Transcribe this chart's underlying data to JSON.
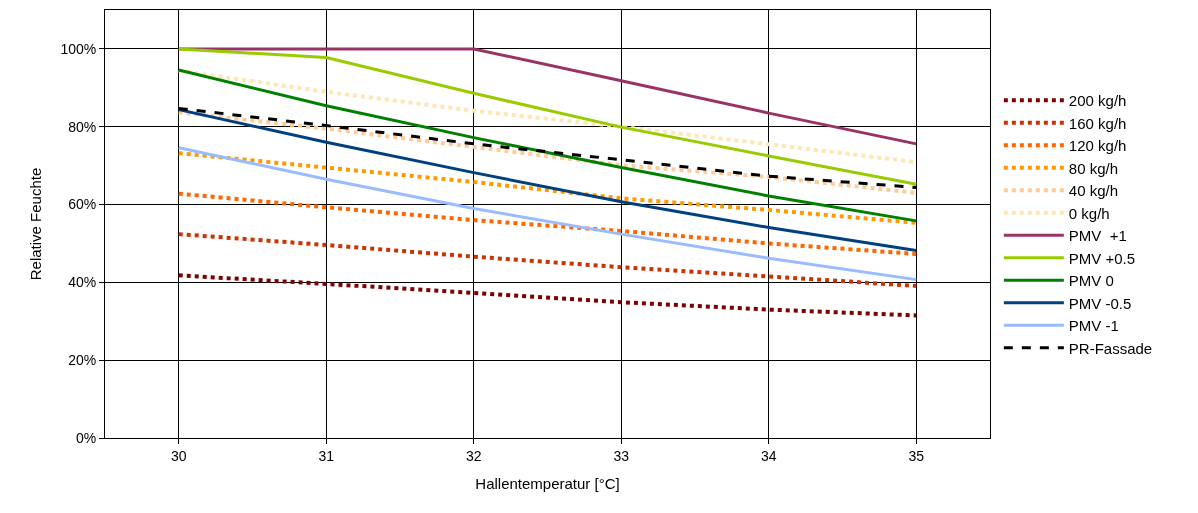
{
  "chart_data": {
    "type": "line",
    "xlabel": "Hallentemperatur [°C]",
    "ylabel": "Relative Feuchte",
    "x": [
      30,
      31,
      32,
      33,
      34,
      35
    ],
    "xlim": [
      29.5,
      35.5
    ],
    "xticks": [
      30,
      31,
      32,
      33,
      34,
      35
    ],
    "ylim": [
      0,
      110
    ],
    "yticks": [
      {
        "value": 0,
        "label": "0%"
      },
      {
        "value": 20,
        "label": "20%"
      },
      {
        "value": 40,
        "label": "40%"
      },
      {
        "value": 60,
        "label": "60%"
      },
      {
        "value": 80,
        "label": "80%"
      },
      {
        "value": 100,
        "label": "100%"
      }
    ],
    "grid": true,
    "legend": "right",
    "marker": "none",
    "series": [
      {
        "name": "200 kg/h",
        "color": "#800000",
        "line_style": "dotted",
        "values": [
          41.8,
          39.6,
          37.3,
          34.9,
          33.0,
          31.5
        ]
      },
      {
        "name": "160 kg/h",
        "color": "#cc3300",
        "line_style": "dotted",
        "values": [
          52.4,
          49.6,
          46.6,
          43.9,
          41.5,
          39.1
        ]
      },
      {
        "name": "120 kg/h",
        "color": "#ff6600",
        "line_style": "dotted",
        "values": [
          62.8,
          59.3,
          56.0,
          53.2,
          50.0,
          47.3
        ]
      },
      {
        "name": "80 kg/h",
        "color": "#ff9900",
        "line_style": "dotted",
        "values": [
          73.2,
          69.5,
          65.8,
          61.6,
          58.6,
          55.3
        ]
      },
      {
        "name": "40 kg/h",
        "color": "#ffcc99",
        "line_style": "dotted",
        "values": [
          83.7,
          79.5,
          74.8,
          70.1,
          67.1,
          63.0
        ]
      },
      {
        "name": "0 kg/h",
        "color": "#ffe6b3",
        "line_style": "dotted",
        "values": [
          94.4,
          89.0,
          84.1,
          80.0,
          75.5,
          70.9
        ]
      },
      {
        "name": "PMV  +1",
        "color": "#993366",
        "line_style": "solid",
        "values": [
          100,
          100,
          100,
          91.8,
          83.5,
          75.6
        ]
      },
      {
        "name": "PMV +0.5",
        "color": "#99cc00",
        "line_style": "solid",
        "values": [
          100,
          97.8,
          88.6,
          79.9,
          72.5,
          65.2
        ]
      },
      {
        "name": "PMV 0",
        "color": "#008000",
        "line_style": "solid",
        "values": [
          94.6,
          85.4,
          77.2,
          69.5,
          62.2,
          55.8
        ]
      },
      {
        "name": "PMV -0.5",
        "color": "#004080",
        "line_style": "solid",
        "values": [
          84.4,
          76.0,
          68.2,
          60.7,
          54.1,
          48.2
        ]
      },
      {
        "name": "PMV -1",
        "color": "#99bbff",
        "line_style": "solid",
        "values": [
          74.6,
          66.5,
          59.0,
          52.4,
          46.2,
          40.7
        ]
      },
      {
        "name": "PR-Fassade",
        "color": "#000000",
        "line_style": "dashed",
        "values": [
          84.7,
          80.3,
          75.6,
          71.5,
          67.3,
          64.4
        ]
      }
    ]
  }
}
